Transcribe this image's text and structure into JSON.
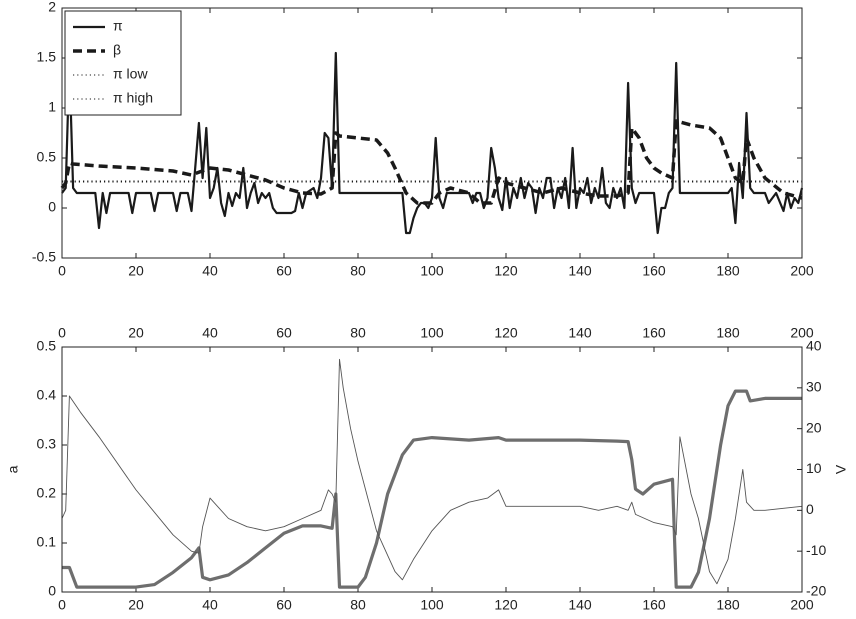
{
  "chart_data": [
    {
      "type": "line",
      "xlim": [
        0,
        200
      ],
      "xticks": [
        0,
        20,
        40,
        60,
        80,
        100,
        120,
        140,
        160,
        180,
        200
      ],
      "ylim": [
        -0.5,
        2
      ],
      "yticks": [
        -0.5,
        0,
        0.5,
        1,
        1.5,
        2
      ],
      "legend": "upper left",
      "series": [
        {
          "name": "π",
          "color": "#1a1a1a",
          "dash": "solid",
          "width": 2.2,
          "x": [
            0,
            1,
            2,
            3,
            4,
            9,
            10,
            11,
            12,
            13,
            18,
            19,
            20,
            24,
            25,
            26,
            30,
            31,
            32,
            34,
            35,
            36,
            37,
            38,
            39,
            40,
            41,
            42,
            43,
            44,
            45,
            46,
            47,
            48,
            49,
            50,
            51,
            52,
            53,
            54,
            55,
            56,
            57,
            58,
            62,
            63,
            64,
            65,
            66,
            68,
            69,
            70,
            71,
            72,
            73,
            74,
            75,
            92,
            93,
            94,
            95,
            96,
            97,
            98,
            99,
            100,
            101,
            102,
            103,
            104,
            110,
            111,
            112,
            113,
            114,
            115,
            116,
            117,
            118,
            119,
            120,
            121,
            122,
            123,
            124,
            125,
            126,
            127,
            128,
            129,
            130,
            131,
            132,
            133,
            134,
            135,
            136,
            137,
            138,
            139,
            140,
            141,
            142,
            143,
            144,
            145,
            146,
            147,
            148,
            149,
            150,
            151,
            152,
            153,
            154,
            155,
            156,
            160,
            161,
            162,
            163,
            164,
            165,
            166,
            167,
            180,
            181,
            182,
            183,
            184,
            185,
            186,
            187,
            190,
            191,
            192,
            193,
            195,
            196,
            197,
            198,
            199,
            200
          ],
          "values": [
            0.15,
            0.2,
            1.45,
            0.2,
            0.15,
            0.15,
            -0.2,
            0.15,
            -0.05,
            0.15,
            0.15,
            -0.05,
            0.15,
            0.15,
            -0.03,
            0.15,
            0.15,
            -0.03,
            0.15,
            0.15,
            -0.03,
            0.4,
            0.85,
            0.3,
            0.8,
            0.1,
            0.2,
            0.4,
            0.05,
            -0.08,
            0.15,
            0.02,
            0.15,
            0.1,
            0.4,
            0.0,
            0.15,
            0.25,
            0.05,
            0.15,
            0.1,
            0.15,
            0.0,
            -0.05,
            -0.05,
            -0.03,
            0.15,
            0.0,
            0.15,
            0.2,
            0.1,
            0.3,
            0.75,
            0.7,
            0.2,
            1.55,
            0.15,
            0.15,
            -0.25,
            -0.25,
            -0.1,
            0.0,
            0.05,
            0.05,
            0.0,
            0.1,
            0.7,
            0.1,
            0.0,
            0.15,
            0.15,
            0.05,
            0.15,
            0.15,
            0.0,
            0.1,
            0.6,
            0.4,
            0.1,
            -0.02,
            0.3,
            0.0,
            0.2,
            0.1,
            0.3,
            0.1,
            0.25,
            0.2,
            -0.05,
            0.2,
            0.1,
            0.3,
            0.3,
            0.0,
            0.2,
            0.1,
            0.3,
            0.0,
            0.6,
            0.0,
            0.2,
            0.15,
            0.3,
            0.05,
            0.2,
            0.1,
            0.4,
            0.05,
            0.0,
            0.2,
            0.1,
            0.2,
            0.0,
            1.25,
            0.2,
            0.05,
            0.15,
            0.15,
            -0.25,
            0.0,
            0.0,
            0.15,
            0.2,
            1.45,
            0.15,
            0.15,
            0.2,
            -0.15,
            0.45,
            0.1,
            0.95,
            0.2,
            0.15,
            0.15,
            0.05,
            0.1,
            0.15,
            -0.03,
            0.15,
            0.0,
            0.1,
            0.05,
            0.2
          ]
        },
        {
          "name": "β",
          "color": "#1a1a1a",
          "dash": "dashed",
          "width": 3.5,
          "x": [
            0,
            1,
            2,
            3,
            10,
            20,
            30,
            35,
            40,
            45,
            50,
            55,
            60,
            65,
            70,
            73,
            74,
            75,
            80,
            85,
            88,
            90,
            93,
            96,
            100,
            102,
            105,
            110,
            113,
            116,
            118,
            120,
            125,
            130,
            135,
            140,
            145,
            150,
            153,
            154,
            156,
            158,
            160,
            162,
            165,
            166,
            170,
            175,
            178,
            180,
            182,
            184,
            185,
            187,
            190,
            195,
            200
          ],
          "values": [
            0.2,
            0.25,
            0.45,
            0.44,
            0.42,
            0.4,
            0.37,
            0.33,
            0.4,
            0.38,
            0.33,
            0.28,
            0.2,
            0.15,
            0.14,
            0.2,
            0.75,
            0.72,
            0.7,
            0.68,
            0.55,
            0.4,
            0.15,
            0.05,
            0.05,
            0.15,
            0.2,
            0.15,
            0.05,
            0.05,
            0.3,
            0.25,
            0.2,
            0.15,
            0.2,
            0.15,
            0.12,
            0.12,
            0.15,
            0.8,
            0.7,
            0.5,
            0.4,
            0.35,
            0.3,
            0.87,
            0.83,
            0.8,
            0.7,
            0.5,
            0.3,
            0.25,
            0.7,
            0.5,
            0.3,
            0.15,
            0.1
          ]
        },
        {
          "name": "π low",
          "color": "#1a1a1a",
          "dash": "dotted",
          "width": 1,
          "x": [
            0,
            200
          ],
          "values": [
            0.26,
            0.26
          ]
        },
        {
          "name": "π high",
          "color": "#1a1a1a",
          "dash": "dotted",
          "width": 1,
          "x": [
            0,
            200
          ],
          "values": [
            0.27,
            0.27
          ]
        }
      ]
    },
    {
      "type": "line",
      "xlim": [
        0,
        200
      ],
      "xticks": [
        0,
        20,
        40,
        60,
        80,
        100,
        120,
        140,
        160,
        180,
        200
      ],
      "xaxis_top": true,
      "ylabel": "a",
      "ylim": [
        0,
        0.5
      ],
      "yticks": [
        0,
        0.1,
        0.2,
        0.3,
        0.4,
        0.5
      ],
      "y2label": "V",
      "y2lim": [
        -20,
        40
      ],
      "y2ticks": [
        -20,
        -10,
        0,
        10,
        20,
        30,
        40
      ],
      "series": [
        {
          "color": "#6e6e6e",
          "dash": "solid",
          "width": 3.2,
          "x": [
            0,
            2,
            3,
            4,
            20,
            25,
            30,
            35,
            37,
            38,
            40,
            45,
            50,
            55,
            60,
            65,
            70,
            73,
            74,
            75,
            80,
            82,
            85,
            88,
            92,
            95,
            100,
            110,
            118,
            120,
            140,
            150,
            153,
            154,
            155,
            157,
            160,
            165,
            166,
            170,
            172,
            175,
            178,
            180,
            182,
            185,
            186,
            190,
            200
          ],
          "values": [
            0.05,
            0.05,
            0.03,
            0.01,
            0.01,
            0.015,
            0.04,
            0.07,
            0.09,
            0.03,
            0.025,
            0.035,
            0.06,
            0.09,
            0.12,
            0.135,
            0.135,
            0.13,
            0.2,
            0.01,
            0.01,
            0.03,
            0.1,
            0.2,
            0.28,
            0.31,
            0.315,
            0.31,
            0.315,
            0.31,
            0.31,
            0.308,
            0.307,
            0.27,
            0.21,
            0.2,
            0.22,
            0.23,
            0.01,
            0.01,
            0.04,
            0.15,
            0.3,
            0.38,
            0.41,
            0.41,
            0.39,
            0.395,
            0.395
          ]
        },
        {
          "color": "#555555",
          "dash": "solid",
          "width": 0.9,
          "axis": "y2",
          "x": [
            0,
            1,
            2,
            5,
            10,
            20,
            30,
            35,
            37,
            38,
            40,
            45,
            50,
            55,
            60,
            65,
            70,
            72,
            73,
            74,
            75,
            76,
            78,
            80,
            85,
            90,
            92,
            95,
            100,
            105,
            110,
            115,
            118,
            120,
            130,
            140,
            145,
            150,
            153,
            154,
            155,
            160,
            165,
            166,
            167,
            170,
            172,
            175,
            177,
            180,
            182,
            184,
            185,
            187,
            190,
            200
          ],
          "values": [
            -2,
            0,
            28,
            24,
            18,
            5,
            -6,
            -10,
            -10.5,
            -4,
            3,
            -2,
            -4,
            -5,
            -4,
            -2,
            0,
            5,
            4,
            2,
            37,
            30,
            20,
            12,
            -5,
            -15,
            -17,
            -12,
            -5,
            0,
            2,
            3,
            5,
            1,
            1,
            1,
            0,
            1,
            0,
            2,
            -1,
            -3,
            -4,
            -6,
            18,
            4,
            -2,
            -15,
            -18,
            -12,
            -2,
            10,
            2,
            0,
            0,
            1
          ]
        }
      ]
    }
  ]
}
